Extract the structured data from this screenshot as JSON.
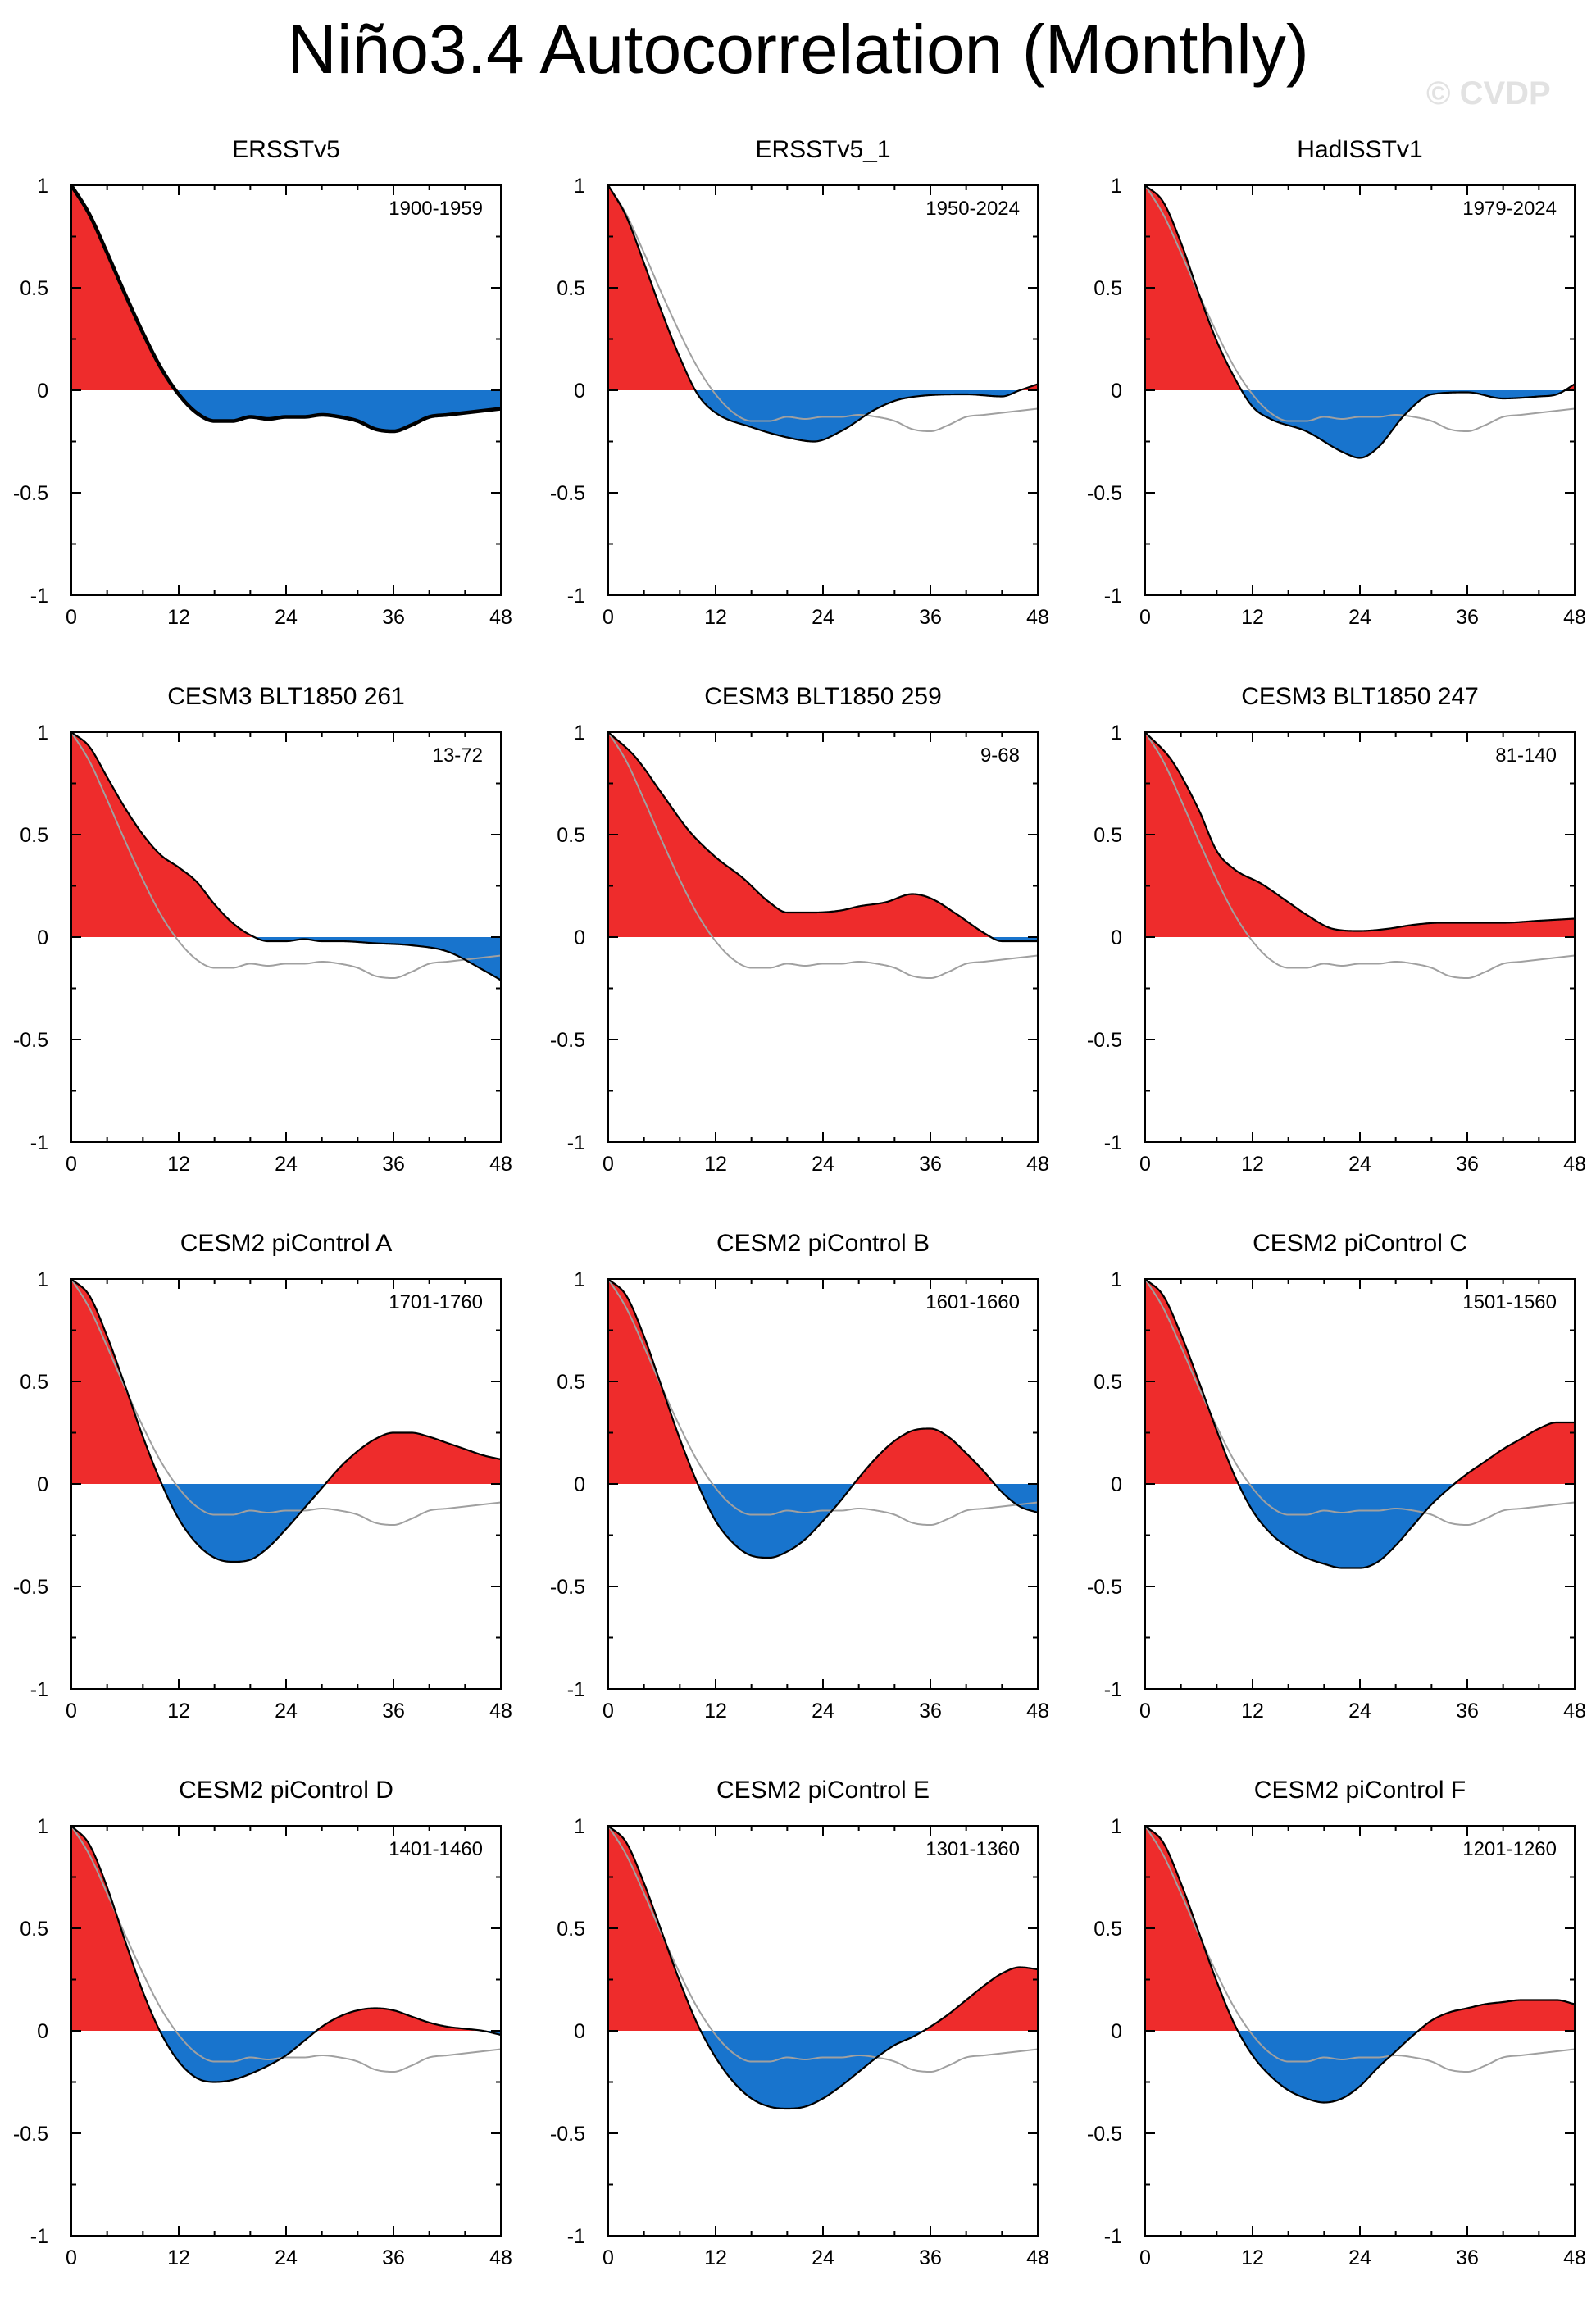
{
  "title": "Niño3.4 Autocorrelation (Monthly)",
  "watermark": "© CVDP",
  "colors": {
    "positive": "#ee2c2c",
    "negative": "#1874cd",
    "reference": "#a0a0a0",
    "curve": "#000000"
  },
  "chart_data": [
    {
      "type": "area",
      "title": "ERSSTv5",
      "period": "1900-1959",
      "reference": true,
      "xlim": [
        0,
        48
      ],
      "ylim": [
        -1,
        1
      ],
      "xticks": [
        "0",
        "12",
        "24",
        "36",
        "48"
      ],
      "yticks": [
        "-1",
        "-0.5",
        "0",
        "0.5",
        "1"
      ],
      "knots": [
        [
          0,
          1
        ],
        [
          2,
          0.86
        ],
        [
          4,
          0.67
        ],
        [
          6,
          0.47
        ],
        [
          8,
          0.28
        ],
        [
          10,
          0.11
        ],
        [
          12,
          -0.02
        ],
        [
          14,
          -0.11
        ],
        [
          16,
          -0.15
        ],
        [
          18,
          -0.15
        ],
        [
          20,
          -0.13
        ],
        [
          22,
          -0.14
        ],
        [
          24,
          -0.13
        ],
        [
          26,
          -0.13
        ],
        [
          28,
          -0.12
        ],
        [
          30,
          -0.13
        ],
        [
          32,
          -0.15
        ],
        [
          34,
          -0.19
        ],
        [
          36,
          -0.2
        ],
        [
          38,
          -0.17
        ],
        [
          40,
          -0.13
        ],
        [
          42,
          -0.12
        ],
        [
          44,
          -0.11
        ],
        [
          46,
          -0.1
        ],
        [
          48,
          -0.09
        ]
      ]
    },
    {
      "type": "area",
      "title": "ERSSTv5_1",
      "period": "1950-2024",
      "reference": true,
      "xlim": [
        0,
        48
      ],
      "ylim": [
        -1,
        1
      ],
      "xticks": [
        "0",
        "12",
        "24",
        "36",
        "48"
      ],
      "yticks": [
        "-1",
        "-0.5",
        "0",
        "0.5",
        "1"
      ],
      "knots": [
        [
          0,
          1
        ],
        [
          2,
          0.85
        ],
        [
          4,
          0.62
        ],
        [
          6,
          0.38
        ],
        [
          8,
          0.16
        ],
        [
          10,
          -0.02
        ],
        [
          12,
          -0.11
        ],
        [
          16,
          -0.18
        ],
        [
          20,
          -0.23
        ],
        [
          23,
          -0.25
        ],
        [
          26,
          -0.2
        ],
        [
          30,
          -0.09
        ],
        [
          33,
          -0.04
        ],
        [
          40,
          -0.02
        ],
        [
          44,
          -0.03
        ],
        [
          46,
          0
        ],
        [
          48,
          0.03
        ]
      ]
    },
    {
      "type": "area",
      "title": "HadISSTv1",
      "period": "1979-2024",
      "reference": true,
      "xlim": [
        0,
        48
      ],
      "ylim": [
        -1,
        1
      ],
      "xticks": [
        "0",
        "12",
        "24",
        "36",
        "48"
      ],
      "yticks": [
        "-1",
        "-0.5",
        "0",
        "0.5",
        "1"
      ],
      "knots": [
        [
          0,
          1
        ],
        [
          2,
          0.92
        ],
        [
          4,
          0.72
        ],
        [
          6,
          0.47
        ],
        [
          8,
          0.24
        ],
        [
          10,
          0.06
        ],
        [
          12,
          -0.08
        ],
        [
          14,
          -0.14
        ],
        [
          18,
          -0.2
        ],
        [
          22,
          -0.3
        ],
        [
          24,
          -0.33
        ],
        [
          26,
          -0.28
        ],
        [
          29,
          -0.12
        ],
        [
          32,
          -0.02
        ],
        [
          36,
          -0.01
        ],
        [
          40,
          -0.04
        ],
        [
          44,
          -0.03
        ],
        [
          46,
          -0.02
        ],
        [
          48,
          0.03
        ]
      ]
    },
    {
      "type": "area",
      "title": "CESM3 BLT1850 261",
      "period": "13-72",
      "reference": true,
      "xlim": [
        0,
        48
      ],
      "ylim": [
        -1,
        1
      ],
      "xticks": [
        "0",
        "12",
        "24",
        "36",
        "48"
      ],
      "yticks": [
        "-1",
        "-0.5",
        "0",
        "0.5",
        "1"
      ],
      "knots": [
        [
          0,
          1
        ],
        [
          2,
          0.93
        ],
        [
          4,
          0.78
        ],
        [
          6,
          0.63
        ],
        [
          8,
          0.5
        ],
        [
          10,
          0.4
        ],
        [
          12,
          0.34
        ],
        [
          14,
          0.27
        ],
        [
          16,
          0.16
        ],
        [
          18,
          0.07
        ],
        [
          20,
          0.01
        ],
        [
          22,
          -0.02
        ],
        [
          24,
          -0.02
        ],
        [
          26,
          -0.01
        ],
        [
          28,
          -0.02
        ],
        [
          30,
          -0.02
        ],
        [
          34,
          -0.03
        ],
        [
          38,
          -0.04
        ],
        [
          42,
          -0.07
        ],
        [
          46,
          -0.16
        ],
        [
          48,
          -0.21
        ]
      ]
    },
    {
      "type": "area",
      "title": "CESM3 BLT1850 259",
      "period": "9-68",
      "reference": true,
      "xlim": [
        0,
        48
      ],
      "ylim": [
        -1,
        1
      ],
      "xticks": [
        "0",
        "12",
        "24",
        "36",
        "48"
      ],
      "yticks": [
        "-1",
        "-0.5",
        "0",
        "0.5",
        "1"
      ],
      "knots": [
        [
          0,
          1
        ],
        [
          3,
          0.88
        ],
        [
          6,
          0.7
        ],
        [
          9,
          0.52
        ],
        [
          12,
          0.39
        ],
        [
          15,
          0.29
        ],
        [
          18,
          0.17
        ],
        [
          20,
          0.12
        ],
        [
          23,
          0.12
        ],
        [
          26,
          0.13
        ],
        [
          28,
          0.15
        ],
        [
          31,
          0.17
        ],
        [
          34,
          0.21
        ],
        [
          36,
          0.19
        ],
        [
          39,
          0.11
        ],
        [
          42,
          0.02
        ],
        [
          44,
          -0.02
        ],
        [
          48,
          -0.02
        ]
      ]
    },
    {
      "type": "area",
      "title": "CESM3 BLT1850 247",
      "period": "81-140",
      "reference": true,
      "xlim": [
        0,
        48
      ],
      "ylim": [
        -1,
        1
      ],
      "xticks": [
        "0",
        "12",
        "24",
        "36",
        "48"
      ],
      "yticks": [
        "-1",
        "-0.5",
        "0",
        "0.5",
        "1"
      ],
      "knots": [
        [
          0,
          1
        ],
        [
          3,
          0.86
        ],
        [
          6,
          0.62
        ],
        [
          8,
          0.42
        ],
        [
          10,
          0.33
        ],
        [
          13,
          0.26
        ],
        [
          16,
          0.17
        ],
        [
          18,
          0.11
        ],
        [
          21,
          0.04
        ],
        [
          24,
          0.03
        ],
        [
          27,
          0.04
        ],
        [
          30,
          0.06
        ],
        [
          33,
          0.07
        ],
        [
          36,
          0.07
        ],
        [
          40,
          0.07
        ],
        [
          44,
          0.08
        ],
        [
          48,
          0.09
        ]
      ]
    },
    {
      "type": "area",
      "title": "CESM2 piControl A",
      "period": "1701-1760",
      "reference": true,
      "xlim": [
        0,
        48
      ],
      "ylim": [
        -1,
        1
      ],
      "xticks": [
        "0",
        "12",
        "24",
        "36",
        "48"
      ],
      "yticks": [
        "-1",
        "-0.5",
        "0",
        "0.5",
        "1"
      ],
      "knots": [
        [
          0,
          1
        ],
        [
          2,
          0.92
        ],
        [
          4,
          0.72
        ],
        [
          6,
          0.48
        ],
        [
          8,
          0.23
        ],
        [
          10,
          0.01
        ],
        [
          12,
          -0.17
        ],
        [
          14,
          -0.29
        ],
        [
          16,
          -0.36
        ],
        [
          18,
          -0.38
        ],
        [
          20,
          -0.37
        ],
        [
          22,
          -0.31
        ],
        [
          24,
          -0.22
        ],
        [
          26,
          -0.12
        ],
        [
          28,
          -0.02
        ],
        [
          30,
          0.08
        ],
        [
          32,
          0.16
        ],
        [
          34,
          0.22
        ],
        [
          36,
          0.25
        ],
        [
          38,
          0.25
        ],
        [
          40,
          0.23
        ],
        [
          42,
          0.2
        ],
        [
          44,
          0.17
        ],
        [
          46,
          0.14
        ],
        [
          48,
          0.12
        ]
      ]
    },
    {
      "type": "area",
      "title": "CESM2 piControl B",
      "period": "1601-1660",
      "reference": true,
      "xlim": [
        0,
        48
      ],
      "ylim": [
        -1,
        1
      ],
      "xticks": [
        "0",
        "12",
        "24",
        "36",
        "48"
      ],
      "yticks": [
        "-1",
        "-0.5",
        "0",
        "0.5",
        "1"
      ],
      "knots": [
        [
          0,
          1
        ],
        [
          2,
          0.92
        ],
        [
          4,
          0.72
        ],
        [
          6,
          0.47
        ],
        [
          8,
          0.22
        ],
        [
          10,
          0
        ],
        [
          12,
          -0.18
        ],
        [
          14,
          -0.29
        ],
        [
          16,
          -0.35
        ],
        [
          18,
          -0.36
        ],
        [
          20,
          -0.33
        ],
        [
          22,
          -0.27
        ],
        [
          24,
          -0.18
        ],
        [
          26,
          -0.08
        ],
        [
          28,
          0.03
        ],
        [
          30,
          0.13
        ],
        [
          32,
          0.21
        ],
        [
          34,
          0.26
        ],
        [
          36,
          0.27
        ],
        [
          38,
          0.23
        ],
        [
          40,
          0.15
        ],
        [
          42,
          0.06
        ],
        [
          44,
          -0.04
        ],
        [
          46,
          -0.11
        ],
        [
          48,
          -0.14
        ]
      ]
    },
    {
      "type": "area",
      "title": "CESM2 piControl C",
      "period": "1501-1560",
      "reference": true,
      "xlim": [
        0,
        48
      ],
      "ylim": [
        -1,
        1
      ],
      "xticks": [
        "0",
        "12",
        "24",
        "36",
        "48"
      ],
      "yticks": [
        "-1",
        "-0.5",
        "0",
        "0.5",
        "1"
      ],
      "knots": [
        [
          0,
          1
        ],
        [
          2,
          0.92
        ],
        [
          4,
          0.73
        ],
        [
          6,
          0.5
        ],
        [
          8,
          0.26
        ],
        [
          10,
          0.04
        ],
        [
          12,
          -0.13
        ],
        [
          14,
          -0.24
        ],
        [
          16,
          -0.31
        ],
        [
          18,
          -0.36
        ],
        [
          20,
          -0.39
        ],
        [
          22,
          -0.41
        ],
        [
          24,
          -0.41
        ],
        [
          26,
          -0.38
        ],
        [
          28,
          -0.3
        ],
        [
          30,
          -0.2
        ],
        [
          32,
          -0.1
        ],
        [
          34,
          -0.02
        ],
        [
          36,
          0.05
        ],
        [
          38,
          0.11
        ],
        [
          40,
          0.17
        ],
        [
          42,
          0.22
        ],
        [
          44,
          0.27
        ],
        [
          46,
          0.3
        ],
        [
          48,
          0.3
        ]
      ]
    },
    {
      "type": "area",
      "title": "CESM2 piControl D",
      "period": "1401-1460",
      "reference": true,
      "xlim": [
        0,
        48
      ],
      "ylim": [
        -1,
        1
      ],
      "xticks": [
        "0",
        "12",
        "24",
        "36",
        "48"
      ],
      "yticks": [
        "-1",
        "-0.5",
        "0",
        "0.5",
        "1"
      ],
      "knots": [
        [
          0,
          1
        ],
        [
          2,
          0.91
        ],
        [
          4,
          0.7
        ],
        [
          6,
          0.44
        ],
        [
          8,
          0.19
        ],
        [
          10,
          -0.01
        ],
        [
          12,
          -0.15
        ],
        [
          14,
          -0.23
        ],
        [
          16,
          -0.25
        ],
        [
          18,
          -0.24
        ],
        [
          20,
          -0.21
        ],
        [
          22,
          -0.17
        ],
        [
          24,
          -0.12
        ],
        [
          26,
          -0.05
        ],
        [
          28,
          0.02
        ],
        [
          30,
          0.07
        ],
        [
          32,
          0.1
        ],
        [
          34,
          0.11
        ],
        [
          36,
          0.1
        ],
        [
          38,
          0.07
        ],
        [
          40,
          0.04
        ],
        [
          42,
          0.02
        ],
        [
          44,
          0.01
        ],
        [
          46,
          0
        ],
        [
          48,
          -0.02
        ]
      ]
    },
    {
      "type": "area",
      "title": "CESM2 piControl E",
      "period": "1301-1360",
      "reference": true,
      "xlim": [
        0,
        48
      ],
      "ylim": [
        -1,
        1
      ],
      "xticks": [
        "0",
        "12",
        "24",
        "36",
        "48"
      ],
      "yticks": [
        "-1",
        "-0.5",
        "0",
        "0.5",
        "1"
      ],
      "knots": [
        [
          0,
          1
        ],
        [
          2,
          0.92
        ],
        [
          4,
          0.72
        ],
        [
          6,
          0.48
        ],
        [
          8,
          0.24
        ],
        [
          10,
          0.03
        ],
        [
          12,
          -0.13
        ],
        [
          14,
          -0.25
        ],
        [
          16,
          -0.33
        ],
        [
          18,
          -0.37
        ],
        [
          20,
          -0.38
        ],
        [
          22,
          -0.37
        ],
        [
          24,
          -0.33
        ],
        [
          26,
          -0.27
        ],
        [
          28,
          -0.2
        ],
        [
          30,
          -0.13
        ],
        [
          32,
          -0.07
        ],
        [
          34,
          -0.03
        ],
        [
          36,
          0.02
        ],
        [
          38,
          0.08
        ],
        [
          40,
          0.15
        ],
        [
          42,
          0.22
        ],
        [
          44,
          0.28
        ],
        [
          46,
          0.31
        ],
        [
          48,
          0.3
        ]
      ]
    },
    {
      "type": "area",
      "title": "CESM2 piControl F",
      "period": "1201-1260",
      "reference": true,
      "xlim": [
        0,
        48
      ],
      "ylim": [
        -1,
        1
      ],
      "xticks": [
        "0",
        "12",
        "24",
        "36",
        "48"
      ],
      "yticks": [
        "-1",
        "-0.5",
        "0",
        "0.5",
        "1"
      ],
      "knots": [
        [
          0,
          1
        ],
        [
          2,
          0.92
        ],
        [
          4,
          0.72
        ],
        [
          6,
          0.48
        ],
        [
          8,
          0.24
        ],
        [
          10,
          0.03
        ],
        [
          12,
          -0.12
        ],
        [
          14,
          -0.22
        ],
        [
          16,
          -0.29
        ],
        [
          18,
          -0.33
        ],
        [
          20,
          -0.35
        ],
        [
          22,
          -0.33
        ],
        [
          24,
          -0.27
        ],
        [
          26,
          -0.18
        ],
        [
          28,
          -0.1
        ],
        [
          30,
          -0.02
        ],
        [
          32,
          0.05
        ],
        [
          34,
          0.09
        ],
        [
          36,
          0.11
        ],
        [
          38,
          0.13
        ],
        [
          40,
          0.14
        ],
        [
          42,
          0.15
        ],
        [
          44,
          0.15
        ],
        [
          46,
          0.15
        ],
        [
          48,
          0.13
        ]
      ]
    }
  ]
}
